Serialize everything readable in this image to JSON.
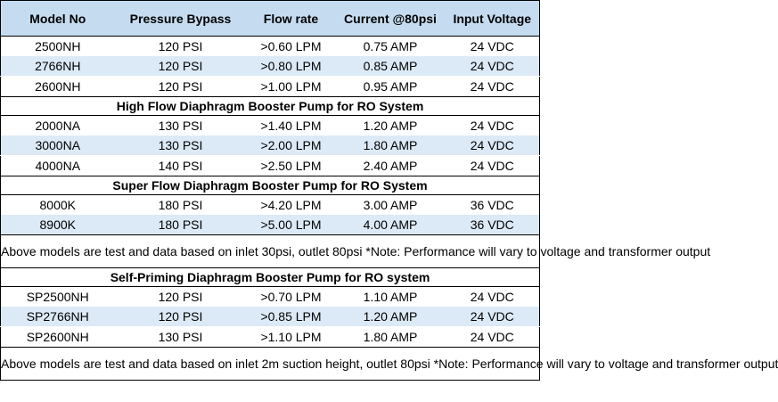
{
  "headers": [
    "Model No",
    "Pressure Bypass",
    "Flow rate",
    "Current @80psi",
    "Input Voltage"
  ],
  "groups": [
    {
      "title": "",
      "rows": [
        [
          "2500NH",
          "120 PSI",
          ">0.60 LPM",
          "0.75 AMP",
          "24 VDC"
        ],
        [
          "2766NH",
          "120 PSI",
          ">0.80 LPM",
          "0.85 AMP",
          "24 VDC"
        ],
        [
          "2600NH",
          "120 PSI",
          ">1.00 LPM",
          "0.95 AMP",
          "24 VDC"
        ]
      ]
    },
    {
      "title": "High Flow Diaphragm Booster Pump for RO System",
      "rows": [
        [
          "2000NA",
          "130 PSI",
          ">1.40 LPM",
          "1.20 AMP",
          "24 VDC"
        ],
        [
          "3000NA",
          "130 PSI",
          ">2.00 LPM",
          "1.80 AMP",
          "24 VDC"
        ],
        [
          "4000NA",
          "140 PSI",
          ">2.50 LPM",
          "2.40 AMP",
          "24 VDC"
        ]
      ]
    },
    {
      "title": "Super Flow Diaphragm Booster Pump for RO System",
      "rows": [
        [
          "8000K",
          "180 PSI",
          ">4.20 LPM",
          "3.00 AMP",
          "36 VDC"
        ],
        [
          "8900K",
          "180 PSI",
          ">5.00 LPM",
          "4.00 AMP",
          "36 VDC"
        ]
      ]
    },
    {
      "note": "Above models are test and data based on inlet 30psi, outlet 80psi *Note: Performance will vary to voltage and transformer output"
    },
    {
      "title": "Self-Priming Diaphragm Booster Pump for RO system",
      "rows": [
        [
          "SP2500NH",
          "120 PSI",
          ">0.70 LPM",
          "1.10 AMP",
          "24 VDC"
        ],
        [
          "SP2766NH",
          "120 PSI",
          ">0.85 LPM",
          "1.20 AMP",
          "24 VDC"
        ],
        [
          "SP2600NH",
          "130 PSI",
          ">1.10 LPM",
          "1.80 AMP",
          "24 VDC"
        ]
      ]
    },
    {
      "note": "Above models are test and data based on inlet 2m suction height, outlet 80psi *Note: Performance will vary to voltage and transformer output"
    }
  ]
}
